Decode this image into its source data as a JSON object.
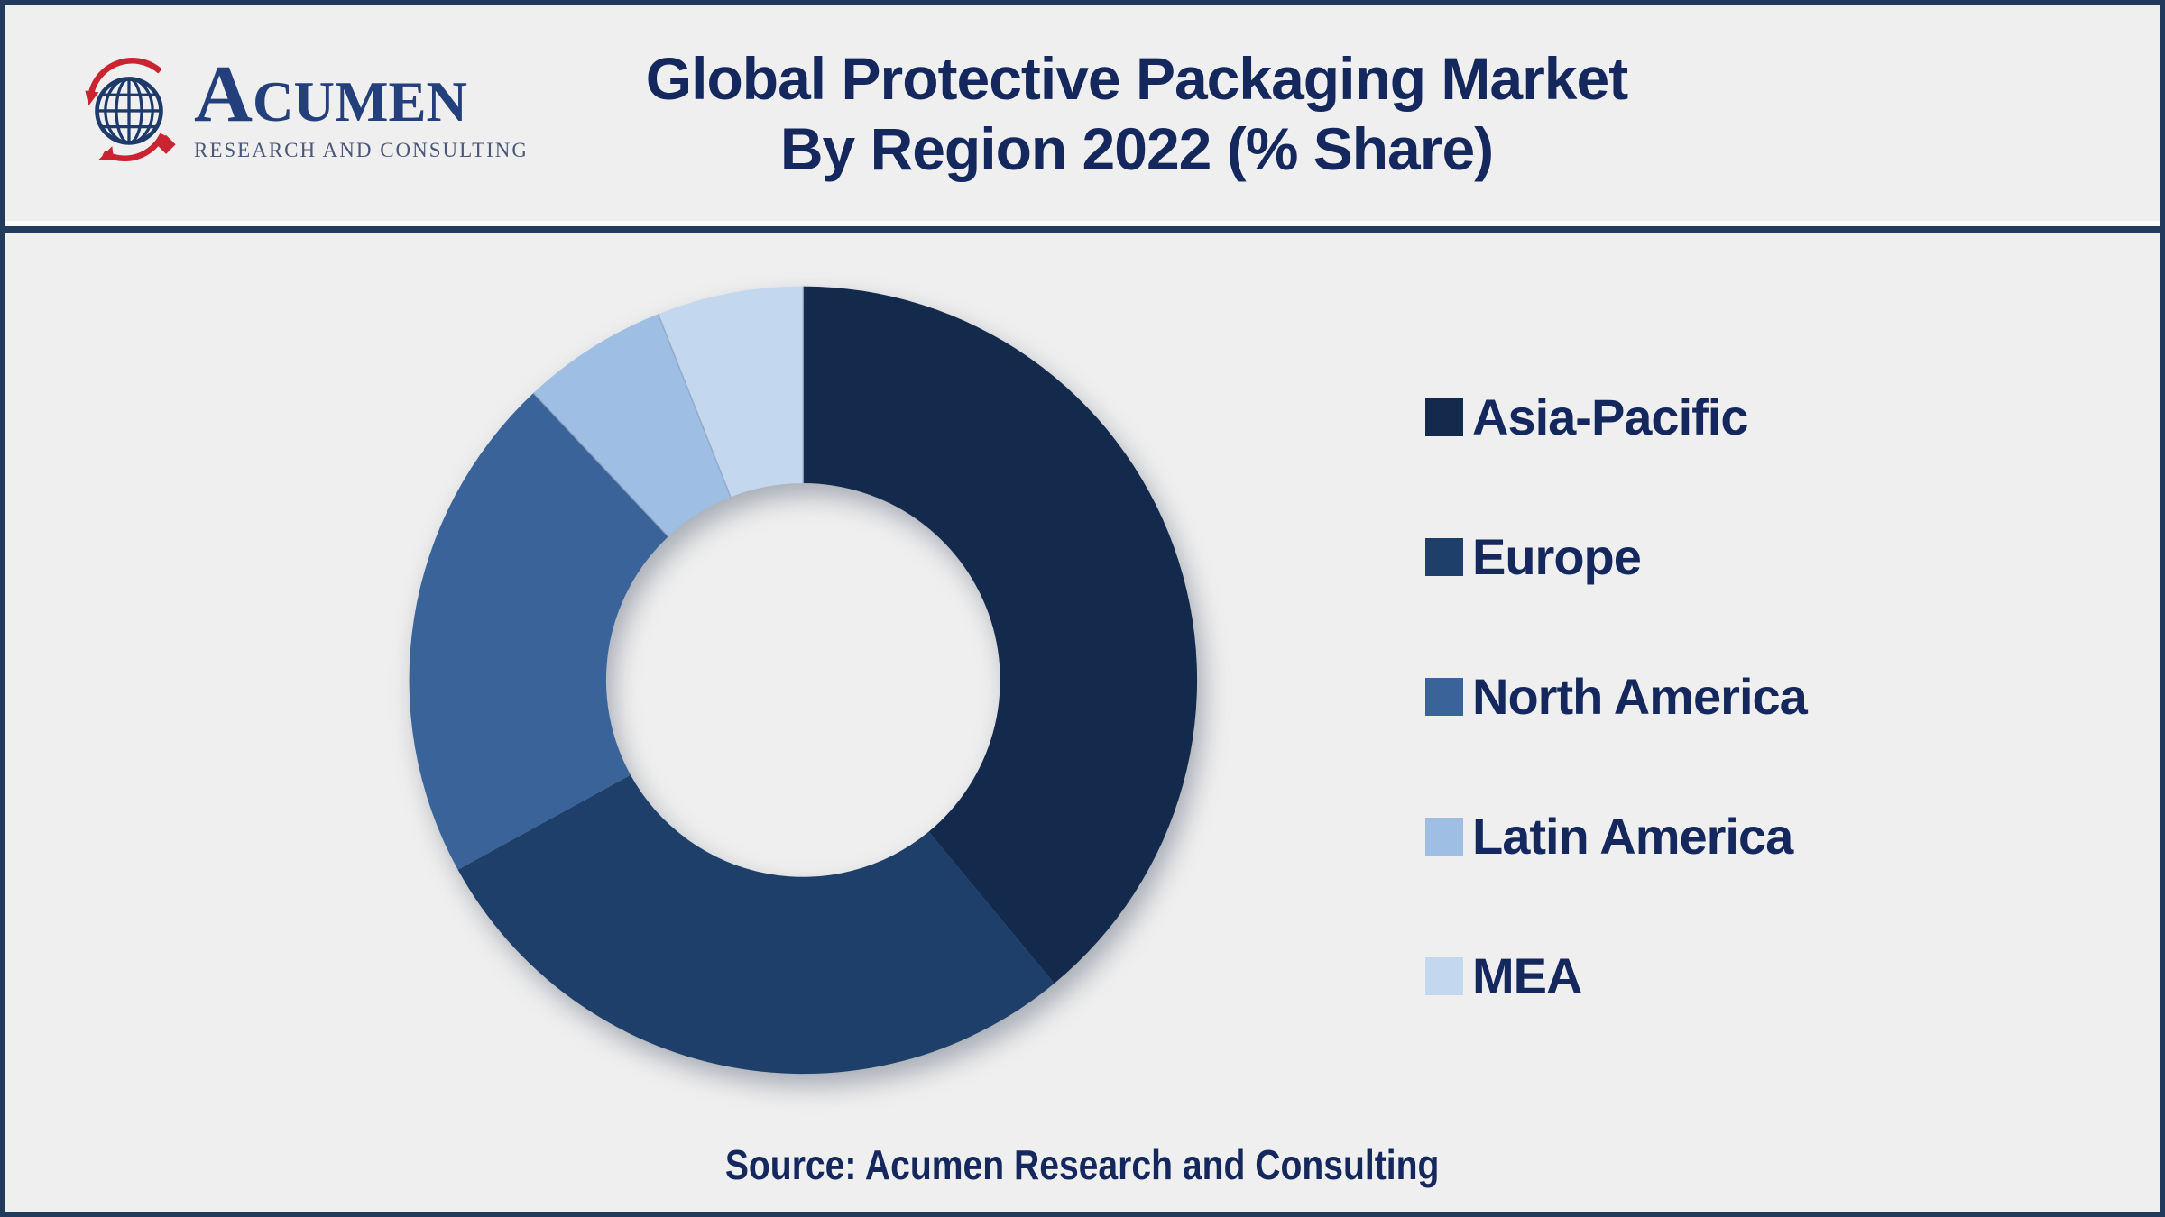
{
  "frame": {
    "background": "#efefef",
    "border_color": "#223a5c"
  },
  "logo": {
    "brand": "Acumen",
    "tagline": "RESEARCH AND CONSULTING",
    "brand_color": "#24407c",
    "tagline_color": "#4a567a",
    "globe_color": "#1d3a6b",
    "accent_red": "#c92430"
  },
  "header": {
    "title_line1": "Global Protective Packaging Market",
    "title_line2": "By Region 2022 (% Share)",
    "title_color": "#14285e"
  },
  "chart_data": {
    "type": "pie",
    "subtype": "donut",
    "title": "Global Protective Packaging Market By Region 2022 (% Share)",
    "unit": "% share",
    "direction": "clockwise",
    "start_angle_deg": 0,
    "inner_radius_ratio": 0.5,
    "legend_position": "right",
    "data_labels": "none",
    "categories": [
      "Asia-Pacific",
      "Europe",
      "North America",
      "Latin America",
      "MEA"
    ],
    "values": [
      39,
      28,
      21,
      6,
      6
    ],
    "colors": [
      "#142a4d",
      "#1e3f69",
      "#3a6499",
      "#9fbee3",
      "#c3d7ef"
    ]
  },
  "source": {
    "label": "Source: Acumen Research and Consulting"
  }
}
